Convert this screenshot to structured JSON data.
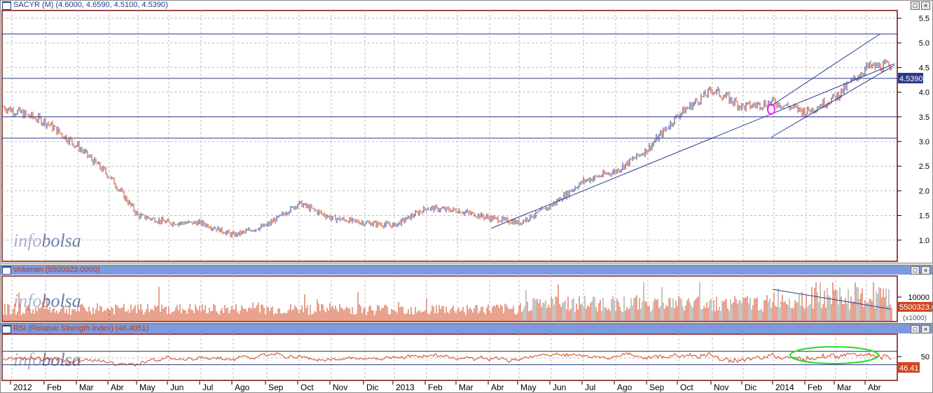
{
  "main": {
    "title": "SACYR (M) (4.6000, 4.6590, 4.5100, 4.5390)",
    "last_label": "4.5390",
    "y_ticks": [
      "5.5",
      "5.0",
      "4.5",
      "4.0",
      "3.5",
      "3.0",
      "2.5",
      "2.0",
      "1.5",
      "1.0"
    ]
  },
  "volume": {
    "title": "Volumen (5500323.0000)",
    "tick": "10000",
    "last_label": "5500323.0",
    "unit": "(x1000)"
  },
  "rsi": {
    "title": "RSI (Relative Strength Index) (46.4051)",
    "tick": "50",
    "last_label": "46.41"
  },
  "watermark": {
    "part1": "info",
    "part2": "bolsa"
  },
  "buttons": {
    "restore": "□",
    "close": "×"
  },
  "colors": {
    "up": "#2b3a8a",
    "down": "#d2461e",
    "line": "#2b3a8a",
    "rsi": "#d2461e",
    "highlight_green": "#22dd22",
    "highlight_magenta": "#ee22ee"
  },
  "chart_data": {
    "type": "bar",
    "x_labels": [
      "2012",
      "Feb",
      "Mar",
      "Abr",
      "May",
      "Jun",
      "Jul",
      "Ago",
      "Sep",
      "Oct",
      "Nov",
      "Dic",
      "2013",
      "Feb",
      "Mar",
      "Abr",
      "May",
      "Jun",
      "Jul",
      "Ago",
      "Sep",
      "Oct",
      "Nov",
      "Dic",
      "2014",
      "Feb",
      "Mar",
      "Abr"
    ],
    "price_monthly_close": [
      3.4,
      2.9,
      2.3,
      1.5,
      1.35,
      1.35,
      1.1,
      1.3,
      1.75,
      1.45,
      1.35,
      1.3,
      1.65,
      1.6,
      1.45,
      1.35,
      1.7,
      2.2,
      2.4,
      2.85,
      3.55,
      4.05,
      3.7,
      3.8,
      3.6,
      3.9,
      4.5,
      4.54
    ],
    "ylim": [
      0.8,
      5.6
    ],
    "horizontal_levels": [
      5.18,
      4.28,
      3.5,
      3.07
    ],
    "rsi_levels": [
      30,
      50,
      70
    ],
    "last": {
      "open": 4.6,
      "high": 4.659,
      "low": 4.51,
      "close": 4.539,
      "volume": 5500323.0,
      "rsi": 46.4051
    }
  }
}
